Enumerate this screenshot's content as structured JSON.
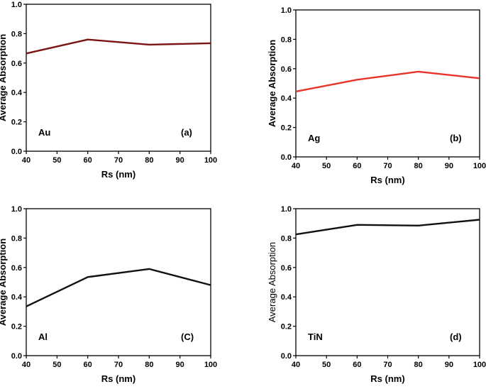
{
  "chart_data": [
    {
      "type": "line",
      "panel_label": "(a)",
      "material": "Au",
      "xlabel": "Rs (nm)",
      "ylabel": "Average Absorption",
      "ylabel_bold": true,
      "xlim": [
        40,
        100
      ],
      "ylim": [
        0.0,
        1.0
      ],
      "x_ticks": [
        "40",
        "50",
        "60",
        "70",
        "80",
        "90",
        "100"
      ],
      "y_ticks": [
        "0.0",
        "0.2",
        "0.4",
        "0.6",
        "0.8",
        "1.0"
      ],
      "grid": false,
      "color": "#7b1414",
      "series": [
        {
          "name": "Au",
          "x": [
            40,
            60,
            80,
            100
          ],
          "y": [
            0.665,
            0.76,
            0.725,
            0.735
          ]
        }
      ]
    },
    {
      "type": "line",
      "panel_label": "(b)",
      "material": "Ag",
      "xlabel": "Rs (nm)",
      "ylabel": "Average Absorption",
      "ylabel_bold": true,
      "xlim": [
        40,
        100
      ],
      "ylim": [
        0.0,
        1.0
      ],
      "x_ticks": [
        "40",
        "50",
        "60",
        "70",
        "80",
        "90",
        "100"
      ],
      "y_ticks": [
        "0.0",
        "0.2",
        "0.4",
        "0.6",
        "0.8",
        "1.0"
      ],
      "grid": false,
      "color": "#e8342a",
      "series": [
        {
          "name": "Ag",
          "x": [
            40,
            60,
            80,
            100
          ],
          "y": [
            0.445,
            0.525,
            0.58,
            0.535
          ]
        }
      ]
    },
    {
      "type": "line",
      "panel_label": "(C)",
      "material": "Al",
      "xlabel": "Rs (nm)",
      "ylabel": "Average Absorption",
      "ylabel_bold": true,
      "xlim": [
        40,
        100
      ],
      "ylim": [
        0.0,
        1.0
      ],
      "x_ticks": [
        "40",
        "50",
        "60",
        "70",
        "80",
        "90",
        "100"
      ],
      "y_ticks": [
        "0.0",
        "0.2",
        "0.4",
        "0.6",
        "0.8",
        "1.0"
      ],
      "grid": false,
      "color": "#111111",
      "series": [
        {
          "name": "Al",
          "x": [
            40,
            60,
            80,
            100
          ],
          "y": [
            0.335,
            0.535,
            0.59,
            0.48
          ]
        }
      ]
    },
    {
      "type": "line",
      "panel_label": "(d)",
      "material": "TiN",
      "xlabel": "Rs (nm)",
      "ylabel": "Average Absorption",
      "ylabel_bold": false,
      "xlim": [
        40,
        100
      ],
      "ylim": [
        0.0,
        1.0
      ],
      "x_ticks": [
        "40",
        "50",
        "60",
        "70",
        "80",
        "90",
        "100"
      ],
      "y_ticks": [
        "0.0",
        "0.2",
        "0.4",
        "0.6",
        "0.8",
        "1.0"
      ],
      "grid": false,
      "color": "#111111",
      "series": [
        {
          "name": "TiN",
          "x": [
            40,
            60,
            80,
            100
          ],
          "y": [
            0.825,
            0.89,
            0.885,
            0.925
          ]
        }
      ]
    }
  ]
}
